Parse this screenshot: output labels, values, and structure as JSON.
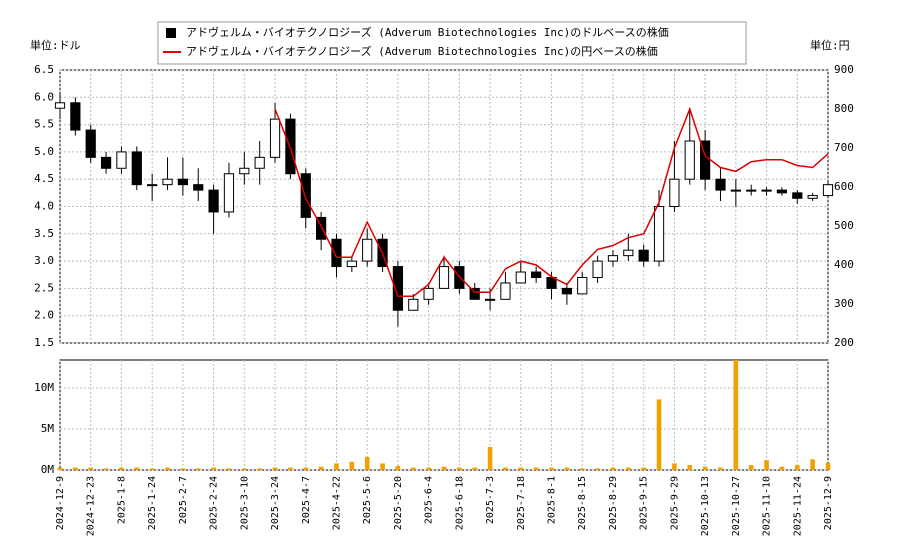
{
  "chart_data": [
    {
      "type": "candlestick",
      "ylabel": "単位:ドル",
      "y2label": "単位:円",
      "ylim": [
        1.5,
        6.5
      ],
      "yticks": [
        {
          "value": 1.5,
          "label": "1.5"
        },
        {
          "value": 2,
          "label": "2.0"
        },
        {
          "value": 2.5,
          "label": "2.5"
        },
        {
          "value": 3,
          "label": "3.0"
        },
        {
          "value": 3.5,
          "label": "3.5"
        },
        {
          "value": 4,
          "label": "4.0"
        },
        {
          "value": 4.5,
          "label": "4.5"
        },
        {
          "value": 5,
          "label": "5.0"
        },
        {
          "value": 5.5,
          "label": "5.5"
        },
        {
          "value": 6,
          "label": "6.0"
        },
        {
          "value": 6.5,
          "label": "6.5"
        }
      ],
      "y2lim": [
        200,
        900
      ],
      "y2ticks": [
        200,
        300,
        400,
        500,
        600,
        700,
        800,
        900
      ],
      "grid": true,
      "series": [
        {
          "name": "アドヴェルム・バイオテクノロジーズ (Adverum Biotechnologies Inc)のドルベースの株価",
          "color": "#000000",
          "open": [
            5.8,
            5.9,
            5.4,
            4.9,
            4.7,
            5.0,
            4.4,
            4.4,
            4.5,
            4.4,
            4.3,
            3.9,
            4.6,
            4.7,
            4.9,
            5.6,
            4.6,
            3.8,
            3.4,
            2.9,
            3.0,
            3.4,
            2.9,
            2.1,
            2.3,
            2.5,
            2.9,
            2.5,
            2.3,
            2.3,
            2.6,
            2.8,
            2.7,
            2.5,
            2.4,
            2.7,
            3.0,
            3.1,
            3.2,
            3.0,
            4.0,
            4.5,
            5.2,
            4.5,
            4.3,
            4.3,
            4.3,
            4.3,
            4.25,
            4.15,
            4.2
          ],
          "high": [
            6.1,
            6.0,
            5.5,
            5.0,
            5.1,
            5.1,
            4.6,
            4.9,
            4.9,
            4.7,
            4.4,
            4.8,
            5.0,
            5.2,
            5.9,
            5.7,
            4.7,
            3.9,
            3.5,
            3.1,
            3.6,
            3.5,
            3.0,
            2.4,
            2.6,
            3.1,
            3.0,
            2.6,
            2.5,
            2.8,
            3.0,
            2.9,
            2.8,
            2.6,
            2.8,
            3.1,
            3.2,
            3.5,
            3.3,
            4.3,
            5.2,
            5.8,
            5.4,
            4.7,
            4.5,
            4.4,
            4.35,
            4.35,
            4.3,
            4.25,
            4.45
          ],
          "low": [
            5.6,
            5.3,
            4.8,
            4.6,
            4.6,
            4.3,
            4.1,
            4.3,
            4.2,
            4.1,
            3.5,
            3.8,
            4.4,
            4.4,
            4.8,
            4.5,
            3.6,
            3.2,
            2.7,
            2.8,
            2.9,
            2.8,
            1.8,
            2.1,
            2.2,
            2.5,
            2.4,
            2.3,
            2.1,
            2.3,
            2.6,
            2.6,
            2.3,
            2.2,
            2.4,
            2.6,
            2.9,
            3.0,
            2.9,
            2.9,
            3.9,
            4.4,
            4.3,
            4.1,
            4.0,
            4.2,
            4.2,
            4.2,
            4.05,
            4.1,
            4.2
          ],
          "close": [
            5.9,
            5.4,
            4.9,
            4.7,
            5.0,
            4.4,
            4.4,
            4.5,
            4.4,
            4.3,
            3.9,
            4.6,
            4.7,
            4.9,
            5.6,
            4.6,
            3.8,
            3.4,
            2.9,
            3.0,
            3.4,
            2.9,
            2.1,
            2.3,
            2.5,
            2.9,
            2.5,
            2.3,
            2.3,
            2.6,
            2.8,
            2.7,
            2.5,
            2.4,
            2.7,
            3.0,
            3.1,
            3.2,
            3.0,
            4.0,
            4.5,
            5.2,
            4.5,
            4.3,
            4.3,
            4.3,
            4.3,
            4.25,
            4.15,
            4.2,
            4.4
          ]
        },
        {
          "name": "アドヴェルム・バイオテクノロジーズ (Adverum Biotechnologies Inc)の円ベースの株価",
          "color": "#dd0000",
          "axis": "y2",
          "values": [
            null,
            null,
            null,
            null,
            null,
            null,
            null,
            null,
            null,
            null,
            null,
            null,
            null,
            null,
            800,
            700,
            570,
            500,
            420,
            420,
            510,
            430,
            320,
            320,
            350,
            420,
            370,
            330,
            330,
            390,
            410,
            400,
            370,
            350,
            400,
            440,
            450,
            470,
            480,
            560,
            700,
            800,
            680,
            650,
            640,
            665,
            670,
            670,
            655,
            650,
            685
          ]
        }
      ]
    },
    {
      "type": "bar",
      "color": "#f0a000",
      "categories": [
        "2024-12-9",
        null,
        "2024-12-23",
        null,
        "2025-1-8",
        null,
        "2025-1-24",
        null,
        "2025-2-7",
        null,
        "2025-2-24",
        null,
        "2025-3-10",
        null,
        "2025-3-24",
        null,
        "2025-4-7",
        null,
        "2025-4-22",
        null,
        "2025-5-6",
        null,
        "2025-5-20",
        null,
        "2025-6-4",
        null,
        "2025-6-18",
        null,
        "2025-7-3",
        null,
        "2025-7-18",
        null,
        "2025-8-1",
        null,
        "2025-8-15",
        null,
        "2025-8-29",
        null,
        "2025-9-15",
        null,
        "2025-9-29",
        null,
        "2025-10-13",
        null,
        "2025-10-27",
        null,
        "2025-11-10",
        null,
        "2025-11-24",
        null,
        "2025-12-9"
      ],
      "values": [
        300000,
        300000,
        300000,
        200000,
        300000,
        300000,
        200000,
        300000,
        200000,
        200000,
        300000,
        200000,
        200000,
        200000,
        300000,
        300000,
        300000,
        400000,
        800000,
        1000000,
        1600000,
        800000,
        500000,
        300000,
        300000,
        400000,
        300000,
        300000,
        2800000,
        300000,
        300000,
        300000,
        300000,
        300000,
        200000,
        200000,
        300000,
        300000,
        300000,
        8600000,
        800000,
        600000,
        400000,
        300000,
        13400000,
        600000,
        1200000,
        400000,
        600000,
        1300000,
        900000
      ],
      "ylim": [
        0,
        13400000
      ],
      "yticks": [
        {
          "value": 0,
          "label": "0M"
        },
        {
          "value": 5000000,
          "label": "5M"
        },
        {
          "value": 10000000,
          "label": "10M"
        }
      ],
      "grid": true
    }
  ]
}
